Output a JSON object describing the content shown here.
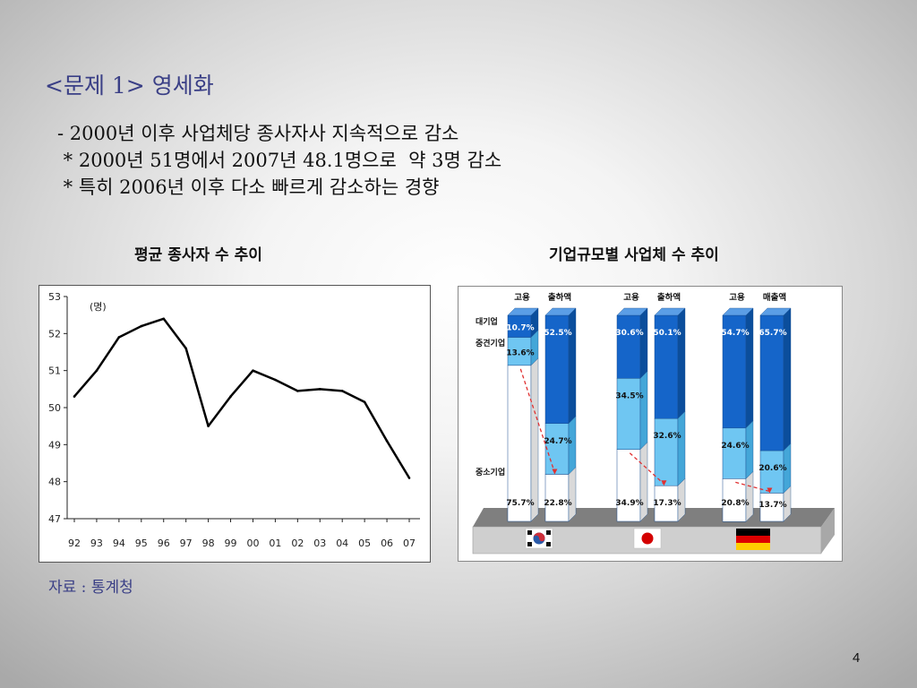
{
  "slide": {
    "title": "<문제 1> 영세화",
    "bullets": [
      "- 2000년 이후 사업체당 종사자사 지속적으로 감소",
      " * 2000년 51명에서 2007년 48.1명으로  약 3명 감소",
      " * 특히 2006년 이후 다소 빠르게 감소하는 경향"
    ],
    "source": "자료 : 통계청",
    "page_number": "4"
  },
  "chart_data": [
    {
      "type": "line",
      "title": "평균 종사자 수 추이",
      "unit_label": "(명)",
      "categories": [
        "92",
        "93",
        "94",
        "95",
        "96",
        "97",
        "98",
        "99",
        "00",
        "01",
        "02",
        "03",
        "04",
        "05",
        "06",
        "07"
      ],
      "series": [
        {
          "values": [
            50.3,
            51.0,
            51.9,
            52.2,
            52.4,
            51.6,
            49.5,
            50.3,
            51.0,
            50.75,
            50.45,
            50.5,
            50.45,
            50.15,
            49.1,
            48.1
          ]
        }
      ],
      "ylim": [
        47,
        53
      ],
      "yticks": [
        53,
        52,
        51,
        50,
        49,
        48,
        47
      ],
      "grid": false,
      "line_color": "#000000"
    },
    {
      "type": "bar",
      "title": "기업규모별 사업체 수 추이",
      "stacked": true,
      "row_labels": [
        "대기업",
        "중견기업",
        "중소기업"
      ],
      "groups": [
        {
          "flag": "korea-flag-icon",
          "bars": [
            {
              "label": "고용",
              "segments": {
                "large": 10.7,
                "mid": 13.6,
                "small": 75.7
              }
            },
            {
              "label": "출하액",
              "segments": {
                "large": 52.5,
                "mid": 24.7,
                "small": 22.8
              }
            }
          ]
        },
        {
          "flag": "japan-flag-icon",
          "bars": [
            {
              "label": "고용",
              "segments": {
                "large": 30.6,
                "mid": 34.5,
                "small": 34.9
              }
            },
            {
              "label": "출하액",
              "segments": {
                "large": 50.1,
                "mid": 32.6,
                "small": 17.3
              }
            }
          ]
        },
        {
          "flag": "germany-flag-icon",
          "bars": [
            {
              "label": "고용",
              "segments": {
                "large": 54.7,
                "mid": 24.6,
                "small": 20.8
              }
            },
            {
              "label": "매출액",
              "segments": {
                "large": 65.7,
                "mid": 20.6,
                "small": 13.7
              }
            }
          ]
        }
      ],
      "colors": {
        "large": "#1565c9",
        "mid": "#6fc6f2",
        "small": "#ffffff",
        "trend": "#e03030"
      }
    }
  ]
}
